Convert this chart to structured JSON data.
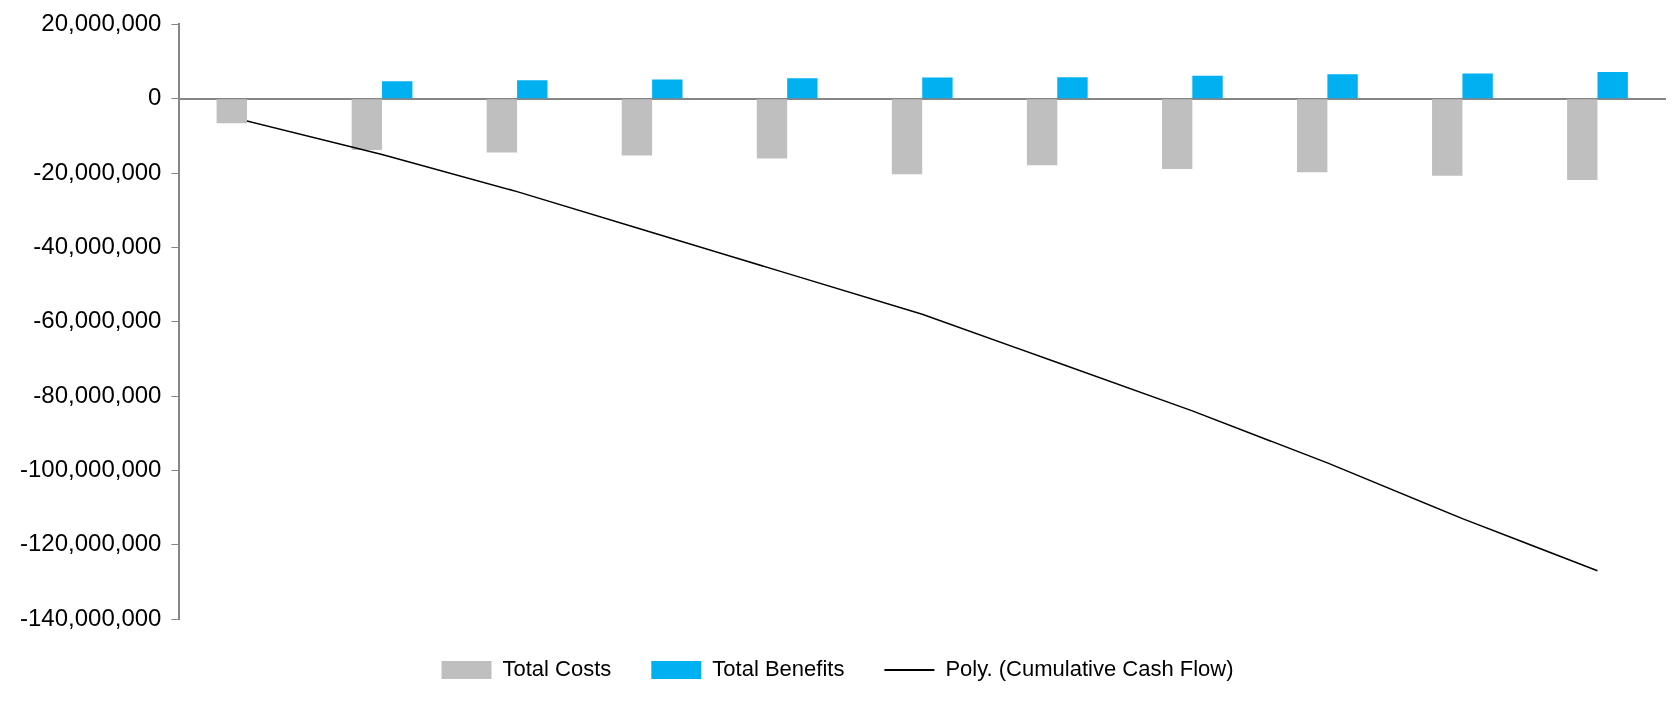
{
  "chart_data": {
    "type": "bar",
    "categories": [
      null,
      null,
      null,
      null,
      null,
      null,
      null,
      null,
      null,
      null,
      null
    ],
    "series": [
      {
        "name": "Total Costs",
        "color": "#bfbfbf",
        "values": [
          -6600000.0,
          -13800000.0,
          -14500000.0,
          -15300000.0,
          -16100000.0,
          -20300000.0,
          -17900000.0,
          -18900000.0,
          -19800000.0,
          -20700000.0,
          -21900000.0
        ]
      },
      {
        "name": "Total Benefits",
        "color": "#00b0f0",
        "values": [
          null,
          4700000.0,
          5000000.0,
          5200000.0,
          5500000.0,
          5700000.0,
          5800000.0,
          6200000.0,
          6600000.0,
          6800000.0,
          7200000.0
        ]
      },
      {
        "name": "Poly. (Cumulative Cash Flow)",
        "type": "line",
        "color": "#000000",
        "values": [
          -6000000.0,
          -15000000.0,
          -25000000.0,
          -36000000.0,
          -47000000.0,
          -58000000.0,
          -71000000.0,
          -84000000.0,
          -98000000.0,
          -113000000.0,
          -127000000.0
        ]
      }
    ],
    "ylim": [
      -140000000,
      20000000
    ],
    "yticks": [
      {
        "value": -140000000,
        "label": "-140,000,000"
      },
      {
        "value": -120000000,
        "label": "-120,000,000"
      },
      {
        "value": -100000000,
        "label": "-100,000,000"
      },
      {
        "value": -80000000,
        "label": "-80,000,000"
      },
      {
        "value": -60000000,
        "label": "-60,000,000"
      },
      {
        "value": -40000000,
        "label": "-40,000,000"
      },
      {
        "value": -20000000,
        "label": "-20,000,000"
      },
      0,
      {
        "value": 20000000,
        "label": "20,000,000"
      }
    ],
    "legend": "bottom",
    "tick_labels": "y",
    "marker": "none",
    "line_style": "solid"
  }
}
